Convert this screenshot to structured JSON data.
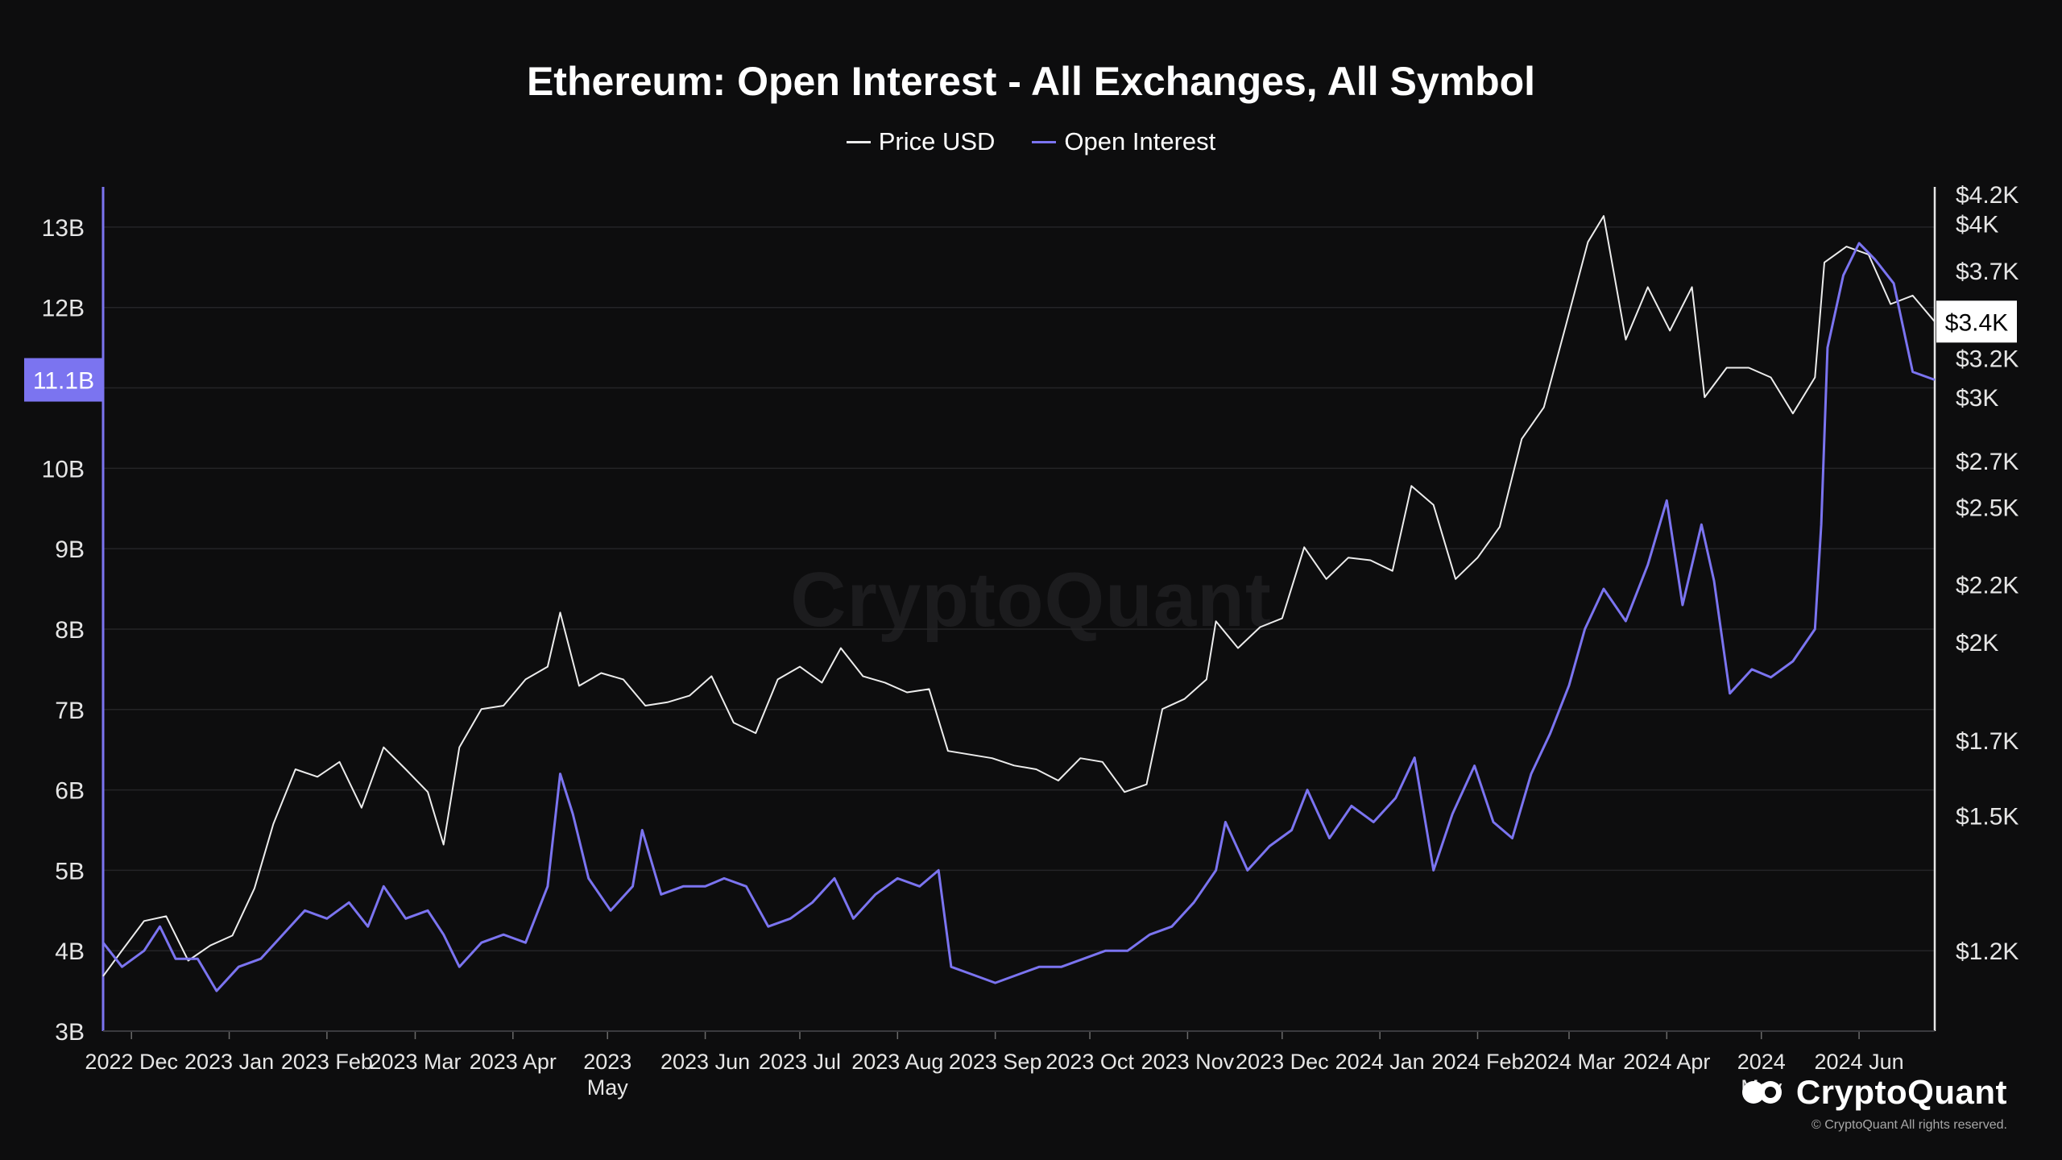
{
  "chart_data": {
    "type": "line",
    "title": "Ethereum: Open Interest - All Exchanges, All Symbol",
    "legend_position": "top-center",
    "grid": true,
    "x_ticks": [
      {
        "label": "2022 Dec",
        "date": "2022-12-01"
      },
      {
        "label": "2023 Jan",
        "date": "2023-01-01"
      },
      {
        "label": "2023 Feb",
        "date": "2023-02-01"
      },
      {
        "label": "2023 Mar",
        "date": "2023-03-01"
      },
      {
        "label": "2023 Apr",
        "date": "2023-04-01"
      },
      {
        "label": "2023\nMay",
        "date": "2023-05-01"
      },
      {
        "label": "2023 Jun",
        "date": "2023-06-01"
      },
      {
        "label": "2023 Jul",
        "date": "2023-07-01"
      },
      {
        "label": "2023 Aug",
        "date": "2023-08-01"
      },
      {
        "label": "2023 Sep",
        "date": "2023-09-01"
      },
      {
        "label": "2023 Oct",
        "date": "2023-10-01"
      },
      {
        "label": "2023 Nov",
        "date": "2023-11-01"
      },
      {
        "label": "2023 Dec",
        "date": "2023-12-01"
      },
      {
        "label": "2024 Jan",
        "date": "2024-01-01"
      },
      {
        "label": "2024 Feb",
        "date": "2024-02-01"
      },
      {
        "label": "2024 Mar",
        "date": "2024-03-01"
      },
      {
        "label": "2024 Apr",
        "date": "2024-04-01"
      },
      {
        "label": "2024\nMay",
        "date": "2024-05-01"
      },
      {
        "label": "2024 Jun",
        "date": "2024-06-01"
      }
    ],
    "xlim": [
      "2022-11-22",
      "2024-06-25"
    ],
    "y_left": {
      "label": "",
      "ylim": [
        3,
        13.5
      ],
      "ticks": [
        {
          "label": "13B",
          "value": 13
        },
        {
          "label": "12B",
          "value": 12
        },
        {
          "label": "11B",
          "value": 11
        },
        {
          "label": "10B",
          "value": 10
        },
        {
          "label": "9B",
          "value": 9
        },
        {
          "label": "8B",
          "value": 8
        },
        {
          "label": "7B",
          "value": 7
        },
        {
          "label": "6B",
          "value": 6
        },
        {
          "label": "5B",
          "value": 5
        },
        {
          "label": "4B",
          "value": 4
        },
        {
          "label": "3B",
          "value": 3
        }
      ],
      "current_marker": {
        "label": "11.1B",
        "value": 11.1
      }
    },
    "y_right": {
      "label": "",
      "scale": "log",
      "ylim": [
        1050,
        4250
      ],
      "ticks": [
        {
          "label": "$4.2K",
          "value": 4200
        },
        {
          "label": "$4K",
          "value": 4000
        },
        {
          "label": "$3.7K",
          "value": 3700
        },
        {
          "label": "$3.2K",
          "value": 3200
        },
        {
          "label": "$3K",
          "value": 3000
        },
        {
          "label": "$2.7K",
          "value": 2700
        },
        {
          "label": "$2.5K",
          "value": 2500
        },
        {
          "label": "$2.2K",
          "value": 2200
        },
        {
          "label": "$2K",
          "value": 2000
        },
        {
          "label": "$1.7K",
          "value": 1700
        },
        {
          "label": "$1.5K",
          "value": 1500
        },
        {
          "label": "$1.2K",
          "value": 1200
        }
      ],
      "current_marker": {
        "label": "$3.4K",
        "value": 3400
      }
    },
    "series": [
      {
        "name": "Price USD",
        "axis": "right",
        "color": "#ececec",
        "points": [
          [
            "2022-11-22",
            1150
          ],
          [
            "2022-11-28",
            1200
          ],
          [
            "2022-12-05",
            1260
          ],
          [
            "2022-12-12",
            1270
          ],
          [
            "2022-12-19",
            1180
          ],
          [
            "2022-12-26",
            1210
          ],
          [
            "2023-01-02",
            1230
          ],
          [
            "2023-01-09",
            1330
          ],
          [
            "2023-01-15",
            1480
          ],
          [
            "2023-01-22",
            1620
          ],
          [
            "2023-01-29",
            1600
          ],
          [
            "2023-02-05",
            1640
          ],
          [
            "2023-02-12",
            1520
          ],
          [
            "2023-02-19",
            1680
          ],
          [
            "2023-02-26",
            1620
          ],
          [
            "2023-03-05",
            1560
          ],
          [
            "2023-03-10",
            1430
          ],
          [
            "2023-03-15",
            1680
          ],
          [
            "2023-03-22",
            1790
          ],
          [
            "2023-03-29",
            1800
          ],
          [
            "2023-04-05",
            1880
          ],
          [
            "2023-04-12",
            1920
          ],
          [
            "2023-04-16",
            2100
          ],
          [
            "2023-04-22",
            1860
          ],
          [
            "2023-04-29",
            1900
          ],
          [
            "2023-05-06",
            1880
          ],
          [
            "2023-05-13",
            1800
          ],
          [
            "2023-05-20",
            1810
          ],
          [
            "2023-05-27",
            1830
          ],
          [
            "2023-06-03",
            1890
          ],
          [
            "2023-06-10",
            1750
          ],
          [
            "2023-06-17",
            1720
          ],
          [
            "2023-06-24",
            1880
          ],
          [
            "2023-07-01",
            1920
          ],
          [
            "2023-07-08",
            1870
          ],
          [
            "2023-07-14",
            1980
          ],
          [
            "2023-07-21",
            1890
          ],
          [
            "2023-07-28",
            1870
          ],
          [
            "2023-08-04",
            1840
          ],
          [
            "2023-08-11",
            1850
          ],
          [
            "2023-08-17",
            1670
          ],
          [
            "2023-08-24",
            1660
          ],
          [
            "2023-08-31",
            1650
          ],
          [
            "2023-09-07",
            1630
          ],
          [
            "2023-09-14",
            1620
          ],
          [
            "2023-09-21",
            1590
          ],
          [
            "2023-09-28",
            1650
          ],
          [
            "2023-10-05",
            1640
          ],
          [
            "2023-10-12",
            1560
          ],
          [
            "2023-10-19",
            1580
          ],
          [
            "2023-10-24",
            1790
          ],
          [
            "2023-10-31",
            1820
          ],
          [
            "2023-11-07",
            1880
          ],
          [
            "2023-11-10",
            2070
          ],
          [
            "2023-11-17",
            1980
          ],
          [
            "2023-11-24",
            2050
          ],
          [
            "2023-12-01",
            2080
          ],
          [
            "2023-12-08",
            2340
          ],
          [
            "2023-12-15",
            2220
          ],
          [
            "2023-12-22",
            2300
          ],
          [
            "2023-12-29",
            2290
          ],
          [
            "2024-01-05",
            2250
          ],
          [
            "2024-01-11",
            2590
          ],
          [
            "2024-01-18",
            2510
          ],
          [
            "2024-01-25",
            2220
          ],
          [
            "2024-02-01",
            2300
          ],
          [
            "2024-02-08",
            2420
          ],
          [
            "2024-02-15",
            2800
          ],
          [
            "2024-02-22",
            2950
          ],
          [
            "2024-02-29",
            3380
          ],
          [
            "2024-03-07",
            3880
          ],
          [
            "2024-03-12",
            4050
          ],
          [
            "2024-03-19",
            3300
          ],
          [
            "2024-03-26",
            3600
          ],
          [
            "2024-04-02",
            3350
          ],
          [
            "2024-04-09",
            3600
          ],
          [
            "2024-04-13",
            3000
          ],
          [
            "2024-04-20",
            3150
          ],
          [
            "2024-04-27",
            3150
          ],
          [
            "2024-05-04",
            3100
          ],
          [
            "2024-05-11",
            2920
          ],
          [
            "2024-05-18",
            3100
          ],
          [
            "2024-05-21",
            3750
          ],
          [
            "2024-05-28",
            3850
          ],
          [
            "2024-06-04",
            3800
          ],
          [
            "2024-06-11",
            3500
          ],
          [
            "2024-06-18",
            3550
          ],
          [
            "2024-06-25",
            3400
          ]
        ]
      },
      {
        "name": "Open Interest",
        "axis": "left",
        "color": "#7b74f0",
        "points": [
          [
            "2022-11-22",
            4.1
          ],
          [
            "2022-11-28",
            3.8
          ],
          [
            "2022-12-05",
            4.0
          ],
          [
            "2022-12-10",
            4.3
          ],
          [
            "2022-12-15",
            3.9
          ],
          [
            "2022-12-22",
            3.9
          ],
          [
            "2022-12-28",
            3.5
          ],
          [
            "2023-01-04",
            3.8
          ],
          [
            "2023-01-11",
            3.9
          ],
          [
            "2023-01-18",
            4.2
          ],
          [
            "2023-01-25",
            4.5
          ],
          [
            "2023-02-01",
            4.4
          ],
          [
            "2023-02-08",
            4.6
          ],
          [
            "2023-02-14",
            4.3
          ],
          [
            "2023-02-19",
            4.8
          ],
          [
            "2023-02-26",
            4.4
          ],
          [
            "2023-03-05",
            4.5
          ],
          [
            "2023-03-10",
            4.2
          ],
          [
            "2023-03-15",
            3.8
          ],
          [
            "2023-03-22",
            4.1
          ],
          [
            "2023-03-29",
            4.2
          ],
          [
            "2023-04-05",
            4.1
          ],
          [
            "2023-04-12",
            4.8
          ],
          [
            "2023-04-16",
            6.2
          ],
          [
            "2023-04-20",
            5.7
          ],
          [
            "2023-04-25",
            4.9
          ],
          [
            "2023-05-02",
            4.5
          ],
          [
            "2023-05-09",
            4.8
          ],
          [
            "2023-05-12",
            5.5
          ],
          [
            "2023-05-18",
            4.7
          ],
          [
            "2023-05-25",
            4.8
          ],
          [
            "2023-06-01",
            4.8
          ],
          [
            "2023-06-07",
            4.9
          ],
          [
            "2023-06-14",
            4.8
          ],
          [
            "2023-06-21",
            4.3
          ],
          [
            "2023-06-28",
            4.4
          ],
          [
            "2023-07-05",
            4.6
          ],
          [
            "2023-07-12",
            4.9
          ],
          [
            "2023-07-18",
            4.4
          ],
          [
            "2023-07-25",
            4.7
          ],
          [
            "2023-08-01",
            4.9
          ],
          [
            "2023-08-08",
            4.8
          ],
          [
            "2023-08-14",
            5.0
          ],
          [
            "2023-08-18",
            3.8
          ],
          [
            "2023-08-25",
            3.7
          ],
          [
            "2023-09-01",
            3.6
          ],
          [
            "2023-09-08",
            3.7
          ],
          [
            "2023-09-15",
            3.8
          ],
          [
            "2023-09-22",
            3.8
          ],
          [
            "2023-09-29",
            3.9
          ],
          [
            "2023-10-06",
            4.0
          ],
          [
            "2023-10-13",
            4.0
          ],
          [
            "2023-10-20",
            4.2
          ],
          [
            "2023-10-27",
            4.3
          ],
          [
            "2023-11-03",
            4.6
          ],
          [
            "2023-11-10",
            5.0
          ],
          [
            "2023-11-13",
            5.6
          ],
          [
            "2023-11-20",
            5.0
          ],
          [
            "2023-11-27",
            5.3
          ],
          [
            "2023-12-04",
            5.5
          ],
          [
            "2023-12-09",
            6.0
          ],
          [
            "2023-12-16",
            5.4
          ],
          [
            "2023-12-23",
            5.8
          ],
          [
            "2023-12-30",
            5.6
          ],
          [
            "2024-01-06",
            5.9
          ],
          [
            "2024-01-12",
            6.4
          ],
          [
            "2024-01-18",
            5.0
          ],
          [
            "2024-01-24",
            5.7
          ],
          [
            "2024-01-31",
            6.3
          ],
          [
            "2024-02-06",
            5.6
          ],
          [
            "2024-02-12",
            5.4
          ],
          [
            "2024-02-18",
            6.2
          ],
          [
            "2024-02-24",
            6.7
          ],
          [
            "2024-03-01",
            7.3
          ],
          [
            "2024-03-06",
            8.0
          ],
          [
            "2024-03-12",
            8.5
          ],
          [
            "2024-03-19",
            8.1
          ],
          [
            "2024-03-26",
            8.8
          ],
          [
            "2024-04-01",
            9.6
          ],
          [
            "2024-04-06",
            8.3
          ],
          [
            "2024-04-12",
            9.3
          ],
          [
            "2024-04-16",
            8.6
          ],
          [
            "2024-04-21",
            7.2
          ],
          [
            "2024-04-28",
            7.5
          ],
          [
            "2024-05-04",
            7.4
          ],
          [
            "2024-05-11",
            7.6
          ],
          [
            "2024-05-18",
            8.0
          ],
          [
            "2024-05-20",
            9.3
          ],
          [
            "2024-05-22",
            11.5
          ],
          [
            "2024-05-27",
            12.4
          ],
          [
            "2024-06-01",
            12.8
          ],
          [
            "2024-06-06",
            12.6
          ],
          [
            "2024-06-12",
            12.3
          ],
          [
            "2024-06-18",
            11.2
          ],
          [
            "2024-06-25",
            11.1
          ]
        ]
      }
    ]
  },
  "branding": {
    "watermark": "CryptoQuant",
    "logo_text": "CryptoQuant",
    "copyright": "© CryptoQuant All rights reserved."
  },
  "colors": {
    "background": "#0d0d0e",
    "grid": "#242427",
    "axis_text": "#e6e6e6",
    "left_axis_line": "#7b74f0",
    "right_axis_line": "#e6e6e6",
    "marker_left_bg": "#7b74f0",
    "marker_right_bg": "#ffffff"
  }
}
